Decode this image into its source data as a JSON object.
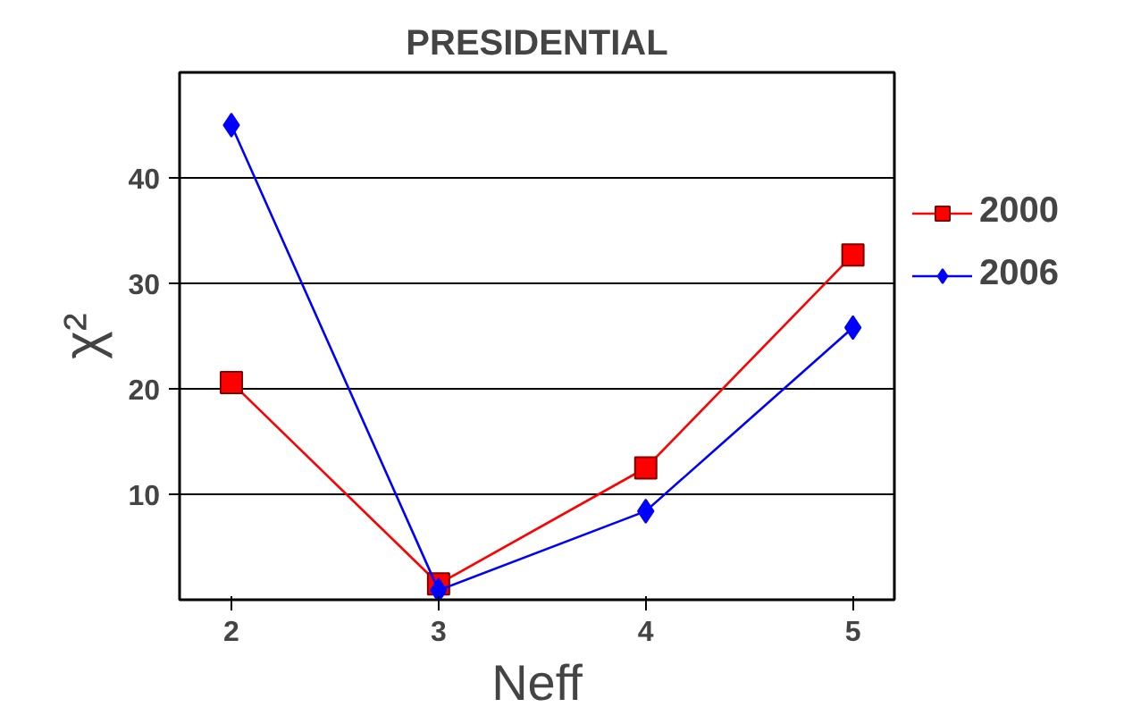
{
  "chart_data": {
    "type": "line",
    "title": "PRESIDENTIAL",
    "xlabel": "Neff",
    "ylabel": "χ²",
    "x": [
      2,
      3,
      4,
      5
    ],
    "xlim": [
      1.75,
      5.2
    ],
    "xticks": [
      2,
      3,
      4,
      5
    ],
    "ylim": [
      0,
      50
    ],
    "yticks": [
      10,
      20,
      30,
      40
    ],
    "series": [
      {
        "name": "2000",
        "color": "#ff0000",
        "marker": "square",
        "values": [
          20.6,
          1.5,
          12.5,
          32.7
        ]
      },
      {
        "name": "2006",
        "color": "#0000ff",
        "marker": "diamond",
        "values": [
          45,
          0.9,
          8.4,
          25.8
        ]
      }
    ],
    "grid": "y",
    "legend": "right",
    "line_style": "solid"
  }
}
